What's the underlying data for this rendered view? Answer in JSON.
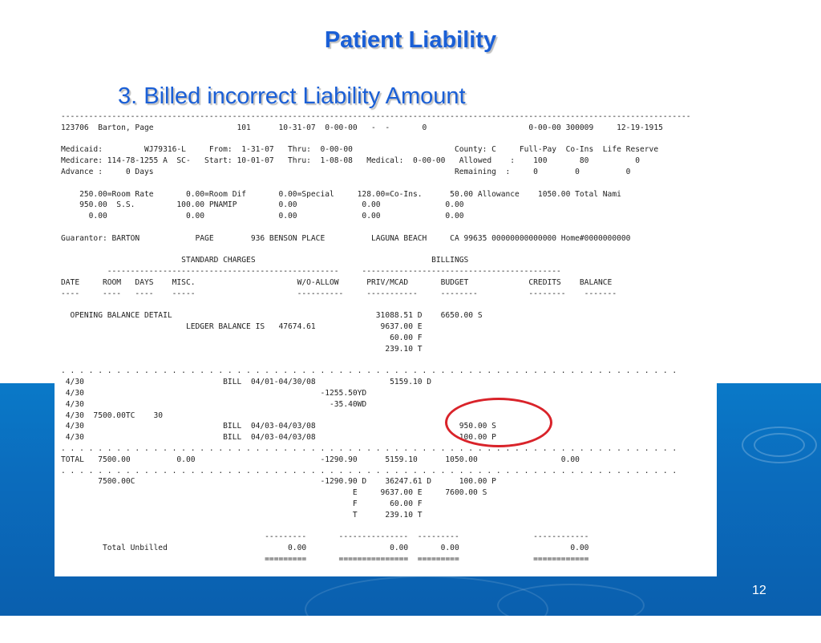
{
  "slide": {
    "title": "Patient Liability",
    "subtitle": "3. Billed incorrect Liability Amount",
    "page_number": "12"
  },
  "report": {
    "text": "----------------------------------------------------------------------------------------------------------------------------------------\n123706  Barton, Page                  101      10-31-07  0-00-00   -  -       0                      0-00-00 300009     12-19-1915\n\nMedicaid:         WJ79316-L     From:  1-31-07   Thru:  0-00-00                      County: C     Full-Pay  Co-Ins  Life Reserve\nMedicare: 114-78-1255 A  SC-   Start: 10-01-07   Thru:  1-08-08   Medical:  0-00-00   Allowed    :    100       80          0\nAdvance :     0 Days                                                                 Remaining  :     0        0          0\n\n    250.00=Room Rate       0.00=Room Dif       0.00=Special     128.00=Co-Ins.      50.00 Allowance    1050.00 Total Nami\n    950.00  S.S.         100.00 PNAMIP         0.00              0.00              0.00\n      0.00                 0.00                0.00              0.00              0.00\n\nGuarantor: BARTON            PAGE        936 BENSON PLACE          LAGUNA BEACH     CA 99635 00000000000000 Home#0000000000\n\n                          STANDARD CHARGES                                      BILLINGS\n          --------------------------------------------------     -------------------------------------------\nDATE     ROOM   DAYS    MISC.                      W/O-ALLOW      PRIV/MCAD       BUDGET             CREDITS    BALANCE\n----     ----   ----    -----                      ----------     -----------     --------           --------    -------\n\n  OPENING BALANCE DETAIL                                            31088.51 D    6650.00 S\n                           LEDGER BALANCE IS   47674.61              9637.00 E\n                                                                       60.00 F\n                                                                      239.10 T\n\n. . . . . . . . . . . . . . . . . . . . . . . . . . . . . . . . . . . . . . . . . . . . . . . . . . . . . . . . . . . . . . . . . . .\n 4/30                              BILL  04/01-04/30/08                5159.10 D\n 4/30                                                   -1255.50YD\n 4/30                                                     -35.40WD\n 4/30  7500.00TC    30\n 4/30                              BILL  04/03-04/03/08                               950.00 S\n 4/30                              BILL  04/03-04/03/08                               100.00 P\n. . . . . . . . . . . . . . . . . . . . . . . . . . . . . . . . . . . . . . . . . . . . . . . . . . . . . . . . . . . . . . . . . . .\nTOTAL   7500.00          0.00                           -1290.90      5159.10      1050.00                  0.00\n. . . . . . . . . . . . . . . . . . . . . . . . . . . . . . . . . . . . . . . . . . . . . . . . . . . . . . . . . . . . . . . . . . .\n        7500.00C                                        -1290.90 D    36247.61 D      100.00 P\n                                                               E     9637.00 E     7600.00 S\n                                                               F       60.00 F\n                                                               T      239.10 T\n\n                                            ---------       ---------------  ---------                ------------\n         Total Unbilled                          0.00                  0.00       0.00                        0.00\n                                            =========       ===============  =========                ============"
  }
}
